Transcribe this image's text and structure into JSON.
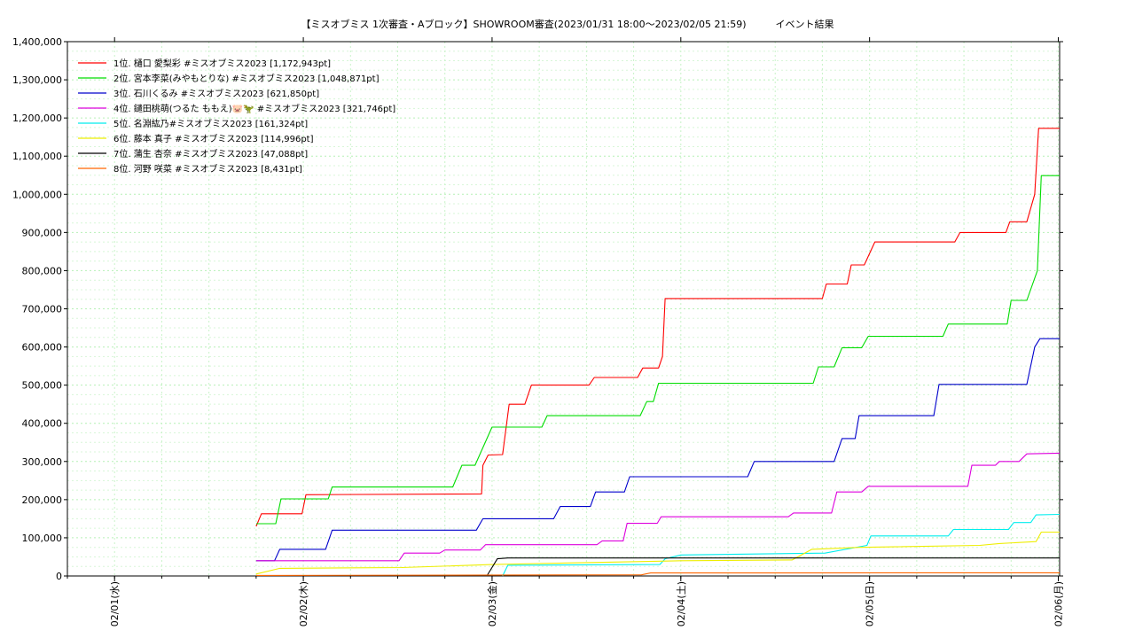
{
  "chart_data": {
    "type": "line",
    "title": "【ミスオブミス 1次審査・Aブロック】SHOWROOM審査(2023/01/31 18:00～2023/02/05 21:59)　　　イベント結果",
    "xlabel": "",
    "ylabel": "",
    "ylim": [
      0,
      1400000
    ],
    "xlim": [
      "2023/01/31 18:00",
      "2023/02/06 00:10"
    ],
    "grid": true,
    "legend_position": "top-left",
    "yticks": [
      "0",
      "100,000",
      "200,000",
      "300,000",
      "400,000",
      "500,000",
      "600,000",
      "700,000",
      "800,000",
      "900,000",
      "1,000,000",
      "1,100,000",
      "1,200,000",
      "1,300,000",
      "1,400,000"
    ],
    "ytick_values": [
      0,
      100000,
      200000,
      300000,
      400000,
      500000,
      600000,
      700000,
      800000,
      900000,
      1000000,
      1100000,
      1200000,
      1300000,
      1400000
    ],
    "xticks": [
      "02/01(水)",
      "02/02(木)",
      "02/03(金)",
      "02/04(土)",
      "02/05(日)",
      "02/06(月)"
    ],
    "xtick_values": [
      "2023/02/01 00:00",
      "2023/02/02 00:00",
      "2023/02/03 00:00",
      "2023/02/04 00:00",
      "2023/02/05 00:00",
      "2023/02/06 00:00"
    ],
    "series": [
      {
        "name": "1位. 樋口 愛梨彩 #ミスオブミス2023 [1,172,943pt]",
        "color": "#ff0000",
        "points": [
          [
            "2023/02/01 18:00",
            130000
          ],
          [
            "2023/02/01 18:40",
            163000
          ],
          [
            "2023/02/01 23:50",
            163000
          ],
          [
            "2023/02/02 00:20",
            213000
          ],
          [
            "2023/02/02 22:40",
            215000
          ],
          [
            "2023/02/02 22:50",
            290000
          ],
          [
            "2023/02/02 23:30",
            317000
          ],
          [
            "2023/02/03 01:20",
            318000
          ],
          [
            "2023/02/03 02:10",
            450000
          ],
          [
            "2023/02/03 04:10",
            450000
          ],
          [
            "2023/02/03 05:00",
            500000
          ],
          [
            "2023/02/03 12:20",
            500000
          ],
          [
            "2023/02/03 13:00",
            520000
          ],
          [
            "2023/02/03 18:30",
            520000
          ],
          [
            "2023/02/03 19:10",
            545000
          ],
          [
            "2023/02/03 21:10",
            545000
          ],
          [
            "2023/02/03 21:40",
            575000
          ],
          [
            "2023/02/03 22:00",
            727000
          ],
          [
            "2023/02/04 18:00",
            727000
          ],
          [
            "2023/02/04 18:30",
            765000
          ],
          [
            "2023/02/04 21:10",
            765000
          ],
          [
            "2023/02/04 21:40",
            815000
          ],
          [
            "2023/02/04 23:20",
            815000
          ],
          [
            "2023/02/05 00:40",
            875000
          ],
          [
            "2023/02/05 10:50",
            875000
          ],
          [
            "2023/02/05 11:30",
            900000
          ],
          [
            "2023/02/05 17:20",
            900000
          ],
          [
            "2023/02/05 17:50",
            928000
          ],
          [
            "2023/02/05 20:00",
            928000
          ],
          [
            "2023/02/05 21:00",
            1000000
          ],
          [
            "2023/02/05 21:30",
            1172943
          ],
          [
            "2023/02/06 00:10",
            1172943
          ]
        ]
      },
      {
        "name": "2位. 宮本李菜(みやもとりな) #ミスオブミス2023 [1,048,871pt]",
        "color": "#00dd00",
        "points": [
          [
            "2023/02/01 18:00",
            137000
          ],
          [
            "2023/02/01 20:30",
            137000
          ],
          [
            "2023/02/01 21:10",
            202000
          ],
          [
            "2023/02/02 03:10",
            202000
          ],
          [
            "2023/02/02 03:40",
            233000
          ],
          [
            "2023/02/02 08:20",
            233000
          ],
          [
            "2023/02/02 08:30",
            233000
          ],
          [
            "2023/02/02 19:00",
            233000
          ],
          [
            "2023/02/02 20:10",
            290000
          ],
          [
            "2023/02/02 21:50",
            290000
          ],
          [
            "2023/02/03 00:00",
            390000
          ],
          [
            "2023/02/03 06:20",
            390000
          ],
          [
            "2023/02/03 07:00",
            420000
          ],
          [
            "2023/02/03 18:50",
            420000
          ],
          [
            "2023/02/03 19:40",
            457000
          ],
          [
            "2023/02/03 20:30",
            457000
          ],
          [
            "2023/02/03 21:10",
            505000
          ],
          [
            "2023/02/04 16:50",
            505000
          ],
          [
            "2023/02/04 17:30",
            548000
          ],
          [
            "2023/02/04 19:30",
            548000
          ],
          [
            "2023/02/04 20:30",
            598000
          ],
          [
            "2023/02/04 23:00",
            598000
          ],
          [
            "2023/02/04 23:50",
            628000
          ],
          [
            "2023/02/05 09:20",
            628000
          ],
          [
            "2023/02/05 10:00",
            660000
          ],
          [
            "2023/02/05 17:30",
            660000
          ],
          [
            "2023/02/05 18:00",
            722000
          ],
          [
            "2023/02/05 20:00",
            722000
          ],
          [
            "2023/02/05 21:20",
            800000
          ],
          [
            "2023/02/05 21:50",
            1048871
          ],
          [
            "2023/02/06 00:10",
            1048871
          ]
        ]
      },
      {
        "name": "3位. 石川くるみ #ミスオブミス2023 [621,850pt]",
        "color": "#0000cc",
        "points": [
          [
            "2023/02/01 18:00",
            40000
          ],
          [
            "2023/02/01 20:20",
            40000
          ],
          [
            "2023/02/01 21:00",
            70000
          ],
          [
            "2023/02/02 02:50",
            70000
          ],
          [
            "2023/02/02 03:40",
            120000
          ],
          [
            "2023/02/02 22:00",
            120000
          ],
          [
            "2023/02/02 22:50",
            150000
          ],
          [
            "2023/02/03 07:50",
            150000
          ],
          [
            "2023/02/03 08:40",
            182000
          ],
          [
            "2023/02/03 12:30",
            182000
          ],
          [
            "2023/02/03 13:10",
            220000
          ],
          [
            "2023/02/03 16:50",
            220000
          ],
          [
            "2023/02/03 17:30",
            260000
          ],
          [
            "2023/02/04 08:30",
            260000
          ],
          [
            "2023/02/04 09:20",
            300000
          ],
          [
            "2023/02/04 19:30",
            300000
          ],
          [
            "2023/02/04 20:30",
            360000
          ],
          [
            "2023/02/04 22:10",
            360000
          ],
          [
            "2023/02/04 22:40",
            420000
          ],
          [
            "2023/02/05 08:10",
            420000
          ],
          [
            "2023/02/05 08:50",
            502000
          ],
          [
            "2023/02/05 20:00",
            502000
          ],
          [
            "2023/02/05 21:00",
            600000
          ],
          [
            "2023/02/05 21:40",
            621850
          ],
          [
            "2023/02/06 00:10",
            621850
          ]
        ]
      },
      {
        "name": "4位. 鑓田桃萌(つるた ももえ)🐷🦖 #ミスオブミス2023 [321,746pt]",
        "color": "#dd00dd",
        "points": [
          [
            "2023/02/01 18:00",
            40000
          ],
          [
            "2023/02/02 12:10",
            40000
          ],
          [
            "2023/02/02 12:50",
            60000
          ],
          [
            "2023/02/02 17:20",
            60000
          ],
          [
            "2023/02/02 18:00",
            68000
          ],
          [
            "2023/02/02 22:30",
            68000
          ],
          [
            "2023/02/02 23:10",
            82000
          ],
          [
            "2023/02/03 13:20",
            82000
          ],
          [
            "2023/02/03 14:00",
            92000
          ],
          [
            "2023/02/03 16:40",
            92000
          ],
          [
            "2023/02/03 17:10",
            138000
          ],
          [
            "2023/02/03 21:00",
            138000
          ],
          [
            "2023/02/03 21:30",
            155000
          ],
          [
            "2023/02/04 13:40",
            155000
          ],
          [
            "2023/02/04 14:20",
            165000
          ],
          [
            "2023/02/04 19:10",
            165000
          ],
          [
            "2023/02/04 19:50",
            220000
          ],
          [
            "2023/02/04 23:00",
            220000
          ],
          [
            "2023/02/04 23:50",
            235000
          ],
          [
            "2023/02/05 12:30",
            235000
          ],
          [
            "2023/02/05 13:00",
            290000
          ],
          [
            "2023/02/05 16:00",
            290000
          ],
          [
            "2023/02/05 16:30",
            300000
          ],
          [
            "2023/02/05 19:00",
            300000
          ],
          [
            "2023/02/05 20:00",
            320000
          ],
          [
            "2023/02/06 00:10",
            321746
          ]
        ]
      },
      {
        "name": "5位. 名淵紘乃#ミスオブミス2023 [161,324pt]",
        "color": "#00eeee",
        "points": [
          [
            "2023/02/03 01:20",
            0
          ],
          [
            "2023/02/03 02:00",
            28000
          ],
          [
            "2023/02/03 21:20",
            30000
          ],
          [
            "2023/02/03 22:00",
            45000
          ],
          [
            "2023/02/04 00:00",
            55000
          ],
          [
            "2023/02/04 18:20",
            60000
          ],
          [
            "2023/02/04 23:40",
            80000
          ],
          [
            "2023/02/05 00:10",
            105000
          ],
          [
            "2023/02/05 10:00",
            105000
          ],
          [
            "2023/02/05 10:40",
            122000
          ],
          [
            "2023/02/05 17:40",
            122000
          ],
          [
            "2023/02/05 18:20",
            140000
          ],
          [
            "2023/02/05 20:30",
            140000
          ],
          [
            "2023/02/05 21:10",
            160000
          ],
          [
            "2023/02/06 00:10",
            161324
          ]
        ]
      },
      {
        "name": "6位. 藤本 真子 #ミスオブミス2023 [114,996pt]",
        "color": "#eeee00",
        "points": [
          [
            "2023/02/01 18:00",
            5000
          ],
          [
            "2023/02/01 21:00",
            20000
          ],
          [
            "2023/02/02 12:30",
            22000
          ],
          [
            "2023/02/03 00:00",
            30000
          ],
          [
            "2023/02/04 00:00",
            40000
          ],
          [
            "2023/02/04 14:10",
            42000
          ],
          [
            "2023/02/04 16:40",
            70000
          ],
          [
            "2023/02/04 22:50",
            75000
          ],
          [
            "2023/02/05 14:00",
            80000
          ],
          [
            "2023/02/05 16:30",
            85000
          ],
          [
            "2023/02/05 21:10",
            90000
          ],
          [
            "2023/02/05 21:50",
            114996
          ],
          [
            "2023/02/06 00:10",
            114996
          ]
        ]
      },
      {
        "name": "7位. 蒲生 杏奈 #ミスオブミス2023 [47,088pt]",
        "color": "#000000",
        "points": [
          [
            "2023/02/02 23:20",
            0
          ],
          [
            "2023/02/03 00:40",
            45000
          ],
          [
            "2023/02/03 02:00",
            47088
          ],
          [
            "2023/02/06 00:10",
            47088
          ]
        ]
      },
      {
        "name": "8位. 河野 咲菜 #ミスオブミス2023 [8,431pt]",
        "color": "#ff6600",
        "points": [
          [
            "2023/02/01 18:00",
            1500
          ],
          [
            "2023/02/03 19:00",
            3000
          ],
          [
            "2023/02/03 20:10",
            8000
          ],
          [
            "2023/02/06 00:10",
            8431
          ]
        ]
      }
    ]
  }
}
